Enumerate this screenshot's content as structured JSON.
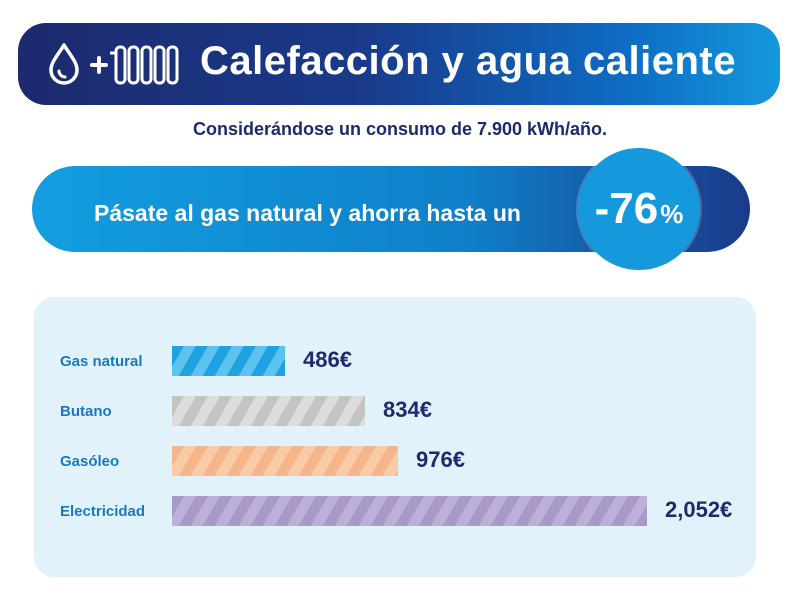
{
  "header": {
    "title": "Calefacción y agua caliente",
    "icons": [
      "water-drop-icon",
      "plus-icon",
      "radiator-icon"
    ]
  },
  "subtitle": "Considerándose un consumo de 7.900 kWh/año.",
  "promo": {
    "text": "Pásate al gas natural y ahorra hasta un",
    "percent_value": "-76",
    "percent_symbol": "%"
  },
  "colors": {
    "header_dark": "#1c2a6e",
    "accent_blue": "#1598dc",
    "panel_bg": "#e2f2fa",
    "label_blue": "#1a78c2"
  },
  "chart_data": {
    "type": "bar",
    "orientation": "horizontal",
    "categories": [
      "Gas natural",
      "Butano",
      "Gasóleo",
      "Electricidad"
    ],
    "values": [
      486,
      834,
      976,
      2052
    ],
    "value_labels": [
      "486€",
      "834€",
      "976€",
      "2,052€"
    ],
    "xlim": [
      0,
      2052
    ],
    "colors": [
      "#1ea2e0",
      "#c4c4c4",
      "#f4b68a",
      "#a899c8"
    ],
    "stripe_colors": [
      "#5cc2ef",
      "#dcdcdc",
      "#f9cba6",
      "#bcb0d8"
    ],
    "grid": false,
    "legend": "none"
  }
}
